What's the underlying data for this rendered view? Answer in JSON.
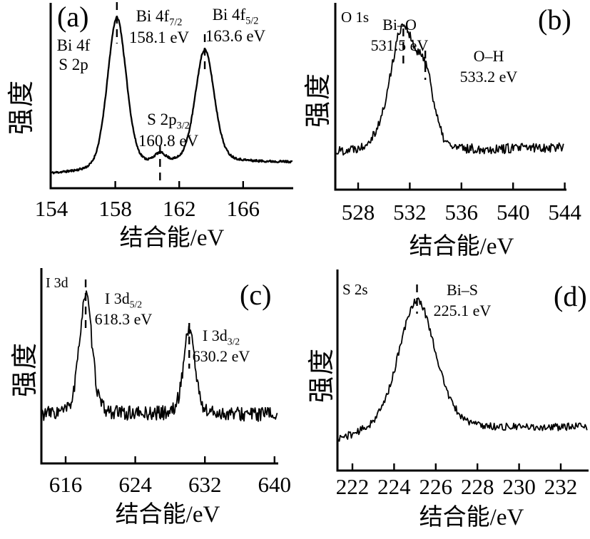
{
  "figure": {
    "background": "#ffffff",
    "ink": "#000000"
  },
  "chart_data": [
    {
      "id": "a",
      "type": "line",
      "panel_label": "(a)",
      "species_lines": [
        "Bi 4f",
        "S 2p"
      ],
      "xlabel": "结合能/eV",
      "ylabel": "强度",
      "x_ticks": [
        154,
        158,
        162,
        166
      ],
      "x_range": [
        153.96,
        169.08
      ],
      "x_axis_unit": "eV",
      "peaks": [
        {
          "assignment_pre": "Bi 4f",
          "assignment_sub": "7/2",
          "energy_ev": 158.1,
          "energy_label": "158.1 eV",
          "height": 0.97,
          "fwhm_ev": 1.4
        },
        {
          "assignment_pre": "S 2p",
          "assignment_sub": "3/2",
          "energy_ev": 160.8,
          "energy_label": "160.8 eV",
          "height": 0.055,
          "fwhm_ev": 0.85
        },
        {
          "assignment_pre": "Bi 4f",
          "assignment_sub": "5/2",
          "energy_ev": 163.6,
          "energy_label": "163.6 eV",
          "height": 0.72,
          "fwhm_ev": 1.4
        }
      ],
      "baseline_points": [
        [
          153.96,
          0.012
        ],
        [
          156.5,
          0.022
        ],
        [
          158.5,
          0.04
        ],
        [
          160.5,
          0.065
        ],
        [
          162.5,
          0.078
        ],
        [
          164.5,
          0.086
        ],
        [
          169.08,
          0.088
        ]
      ],
      "noise": 0.007,
      "n_points": 480,
      "seed": 11
    },
    {
      "id": "b",
      "type": "line",
      "panel_label": "(b)",
      "species_lines": [
        "O 1s"
      ],
      "xlabel": "结合能/eV",
      "ylabel": "强度",
      "x_ticks": [
        528,
        532,
        536,
        540,
        544
      ],
      "x_range": [
        526.23,
        543.9
      ],
      "x_axis_unit": "eV",
      "peaks": [
        {
          "assignment_pre": "Bi–O",
          "assignment_sub": "",
          "energy_ev": 531.5,
          "energy_label": "531.5 eV",
          "height": 0.75,
          "fwhm_ev": 2.0
        },
        {
          "assignment_pre": "O–H",
          "assignment_sub": "",
          "energy_ev": 533.2,
          "energy_label": "533.2 eV",
          "height": 0.5,
          "fwhm_ev": 1.6
        }
      ],
      "baseline_points": [
        [
          526.23,
          0.02
        ],
        [
          528.3,
          0.04
        ],
        [
          529.5,
          0.12
        ],
        [
          530.6,
          0.19
        ],
        [
          531.6,
          0.13
        ],
        [
          532.8,
          0.05
        ],
        [
          534.2,
          0.03
        ],
        [
          536,
          0.03
        ],
        [
          543.9,
          0.06
        ]
      ],
      "noise": 0.035,
      "n_points": 260,
      "seed": 22
    },
    {
      "id": "c",
      "type": "line",
      "panel_label": "(c)",
      "species_lines": [
        "I 3d"
      ],
      "xlabel": "结合能/eV",
      "ylabel": "强度",
      "x_ticks": [
        616,
        624,
        632,
        640
      ],
      "x_range": [
        613.21,
        640.3
      ],
      "x_axis_unit": "eV",
      "peaks": [
        {
          "assignment_pre": "I 3d",
          "assignment_sub": "5/2",
          "energy_ev": 618.3,
          "energy_label": "618.3 eV",
          "height": 0.92,
          "fwhm_ev": 1.7
        },
        {
          "assignment_pre": "I 3d",
          "assignment_sub": "3/2",
          "energy_ev": 630.2,
          "energy_label": "630.2 eV",
          "height": 0.66,
          "fwhm_ev": 1.55
        }
      ],
      "baseline_points": [
        [
          613.21,
          0.02
        ],
        [
          640.3,
          0.02
        ]
      ],
      "noise": 0.055,
      "n_points": 300,
      "seed": 33
    },
    {
      "id": "d",
      "type": "line",
      "panel_label": "(d)",
      "species_lines": [
        "S 2s"
      ],
      "xlabel": "结合能/eV",
      "ylabel": "强度",
      "x_ticks": [
        222,
        224,
        226,
        228,
        230,
        232
      ],
      "x_range": [
        221.28,
        233.26
      ],
      "x_axis_unit": "eV",
      "peaks": [
        {
          "assignment_pre": "Bi–S",
          "assignment_sub": "",
          "energy_ev": 225.1,
          "energy_label": "225.1 eV",
          "height": 0.95,
          "fwhm_ev": 2.1
        }
      ],
      "baseline_points": [
        [
          221.28,
          -0.055
        ],
        [
          223,
          0.0
        ],
        [
          225,
          0.01
        ],
        [
          227,
          0.035
        ],
        [
          228.5,
          0.03
        ],
        [
          233.26,
          0.045
        ]
      ],
      "noise": 0.027,
      "n_points": 270,
      "seed": 44
    }
  ]
}
